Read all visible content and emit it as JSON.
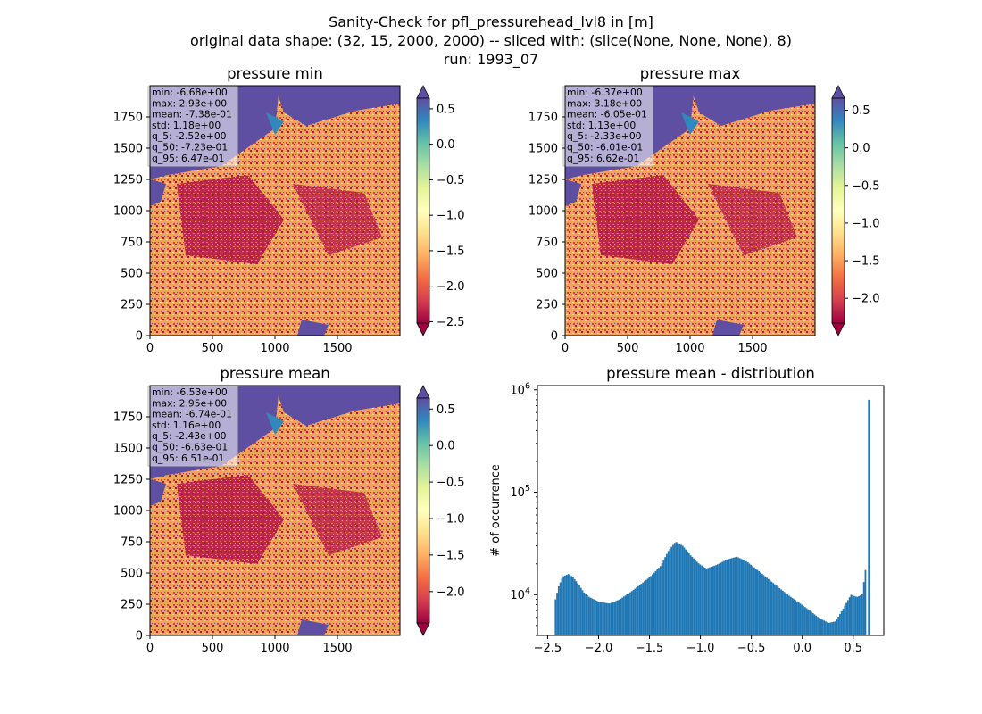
{
  "suptitle": [
    "Sanity-Check for pfl_pressurehead_lvl8 in [m]",
    "original data shape: (32, 15, 2000, 2000) -- sliced with: (slice(None, None, None), 8)",
    "run: 1993_07"
  ],
  "maps": [
    {
      "title": "pressure min",
      "stats": [
        "min: -6.68e+00",
        "max: 2.93e+00",
        "mean: -7.38e-01",
        "std: 1.18e+00",
        "q_5: -2.52e+00",
        "q_50: -7.23e-01",
        "q_95: 6.47e-01"
      ],
      "cbar_ticks": [
        "0.5",
        "0.0",
        "−0.5",
        "−1.0",
        "−1.5",
        "−2.0",
        "−2.5"
      ],
      "vmin": -2.52,
      "vmax": 0.65
    },
    {
      "title": "pressure max",
      "stats": [
        "min: -6.37e+00",
        "max: 3.18e+00",
        "mean: -6.05e-01",
        "std: 1.13e+00",
        "q_5: -2.33e+00",
        "q_50: -6.01e-01",
        "q_95: 6.62e-01"
      ],
      "cbar_ticks": [
        "0.5",
        "0.0",
        "−0.5",
        "−1.0",
        "−1.5",
        "−2.0"
      ],
      "vmin": -2.33,
      "vmax": 0.66
    },
    {
      "title": "pressure mean",
      "stats": [
        "min: -6.53e+00",
        "max: 2.95e+00",
        "mean: -6.74e-01",
        "std: 1.16e+00",
        "q_5: -2.43e+00",
        "q_50: -6.63e-01",
        "q_95: 6.51e-01"
      ],
      "cbar_ticks": [
        "0.5",
        "0.0",
        "−0.5",
        "−1.0",
        "−1.5",
        "−2.0"
      ],
      "vmin": -2.43,
      "vmax": 0.65
    }
  ],
  "map_axes": {
    "xticks": [
      "0",
      "500",
      "1000",
      "1500"
    ],
    "yticks": [
      "0",
      "250",
      "500",
      "750",
      "1000",
      "1250",
      "1500",
      "1750"
    ]
  },
  "chart_data": [
    {
      "type": "heatmap",
      "title": "pressure min",
      "colormap": "Spectral",
      "extend": "both",
      "xlim": [
        0,
        2000
      ],
      "ylim": [
        0,
        2000
      ],
      "clim": [
        -2.52,
        0.65
      ]
    },
    {
      "type": "heatmap",
      "title": "pressure max",
      "colormap": "Spectral",
      "extend": "both",
      "xlim": [
        0,
        2000
      ],
      "ylim": [
        0,
        2000
      ],
      "clim": [
        -2.33,
        0.66
      ]
    },
    {
      "type": "heatmap",
      "title": "pressure mean",
      "colormap": "Spectral",
      "extend": "both",
      "xlim": [
        0,
        2000
      ],
      "ylim": [
        0,
        2000
      ],
      "clim": [
        -2.43,
        0.65
      ]
    },
    {
      "type": "bar",
      "title": "pressure mean - distribution",
      "xlabel": "",
      "ylabel": "# of occurrence",
      "yscale": "log",
      "xlim": [
        -2.6,
        0.8
      ],
      "ylim": [
        4000,
        1100000
      ],
      "xticks": [
        "−2.5",
        "−2.0",
        "−1.5",
        "−1.0",
        "−0.5",
        "0.0",
        "0.5"
      ],
      "yticks": [
        "10^4",
        "10^5",
        "10^6"
      ],
      "color": "#1f77b4",
      "bins": [
        {
          "x": -2.43,
          "y": 9000
        },
        {
          "x": -2.4,
          "y": 12000
        },
        {
          "x": -2.36,
          "y": 15000
        },
        {
          "x": -2.3,
          "y": 16000
        },
        {
          "x": -2.25,
          "y": 14500
        },
        {
          "x": -2.2,
          "y": 12500
        },
        {
          "x": -2.15,
          "y": 10500
        },
        {
          "x": -2.1,
          "y": 9500
        },
        {
          "x": -2.0,
          "y": 8500
        },
        {
          "x": -1.9,
          "y": 8200
        },
        {
          "x": -1.8,
          "y": 9000
        },
        {
          "x": -1.7,
          "y": 10500
        },
        {
          "x": -1.6,
          "y": 12500
        },
        {
          "x": -1.5,
          "y": 15000
        },
        {
          "x": -1.4,
          "y": 19000
        },
        {
          "x": -1.32,
          "y": 27000
        },
        {
          "x": -1.25,
          "y": 33000
        },
        {
          "x": -1.18,
          "y": 30000
        },
        {
          "x": -1.1,
          "y": 24000
        },
        {
          "x": -1.02,
          "y": 20000
        },
        {
          "x": -0.95,
          "y": 18000
        },
        {
          "x": -0.85,
          "y": 19500
        },
        {
          "x": -0.75,
          "y": 22000
        },
        {
          "x": -0.65,
          "y": 23500
        },
        {
          "x": -0.55,
          "y": 21000
        },
        {
          "x": -0.45,
          "y": 17500
        },
        {
          "x": -0.35,
          "y": 14500
        },
        {
          "x": -0.25,
          "y": 12000
        },
        {
          "x": -0.15,
          "y": 10000
        },
        {
          "x": -0.05,
          "y": 8500
        },
        {
          "x": 0.05,
          "y": 7200
        },
        {
          "x": 0.15,
          "y": 6000
        },
        {
          "x": 0.25,
          "y": 5300
        },
        {
          "x": 0.32,
          "y": 5500
        },
        {
          "x": 0.4,
          "y": 7500
        },
        {
          "x": 0.47,
          "y": 10000
        },
        {
          "x": 0.53,
          "y": 9500
        },
        {
          "x": 0.58,
          "y": 10000
        },
        {
          "x": 0.62,
          "y": 20000
        },
        {
          "x": 0.645,
          "y": 800000
        }
      ]
    }
  ]
}
